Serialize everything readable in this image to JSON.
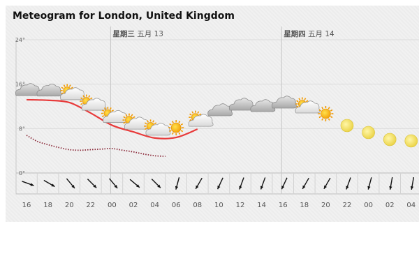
{
  "title": "Meteogram for London, United Kingdom",
  "day_labels": [
    {
      "hour_index": 4,
      "weekday": "星期三",
      "date": "五月 13"
    },
    {
      "hour_index": 12,
      "weekday": "星期四",
      "date": "五月 14"
    }
  ],
  "chart_data": {
    "type": "line",
    "x_ticks": [
      "16",
      "18",
      "20",
      "22",
      "00",
      "02",
      "04",
      "06",
      "08",
      "10",
      "12",
      "14",
      "16",
      "18",
      "20",
      "22",
      "00",
      "02",
      "04"
    ],
    "y_ticks": [
      "24°",
      "16°",
      "8°",
      "0°"
    ],
    "ylim": [
      0,
      24
    ],
    "grid": true,
    "series": [
      {
        "color": "#e83a3a",
        "style": "solid",
        "x": [
          0,
          1,
          2,
          3,
          4,
          5,
          6,
          7,
          8
        ],
        "values": [
          13.2,
          13.1,
          12.7,
          10.8,
          8.6,
          7.4,
          6.3,
          6.4,
          7.9
        ]
      },
      {
        "color": "#8b2a3a",
        "style": "dotted",
        "x": [
          0,
          0.5,
          1,
          1.5,
          2,
          2.5,
          3,
          3.5,
          4,
          4.5,
          5,
          5.5,
          6,
          6.5
        ],
        "values": [
          6.8,
          5.7,
          5.1,
          4.6,
          4.2,
          4.1,
          4.2,
          4.3,
          4.4,
          4.1,
          3.8,
          3.4,
          3.1,
          3.0
        ]
      }
    ],
    "symbols": [
      {
        "x": 0,
        "icon": "cloudy-icon"
      },
      {
        "x": 1,
        "icon": "cloudy-icon"
      },
      {
        "x": 2,
        "icon": "partly-cloudy-icon"
      },
      {
        "x": 3,
        "icon": "partly-cloudy-icon"
      },
      {
        "x": 4,
        "icon": "partly-cloudy-icon"
      },
      {
        "x": 5,
        "icon": "partly-cloudy-icon"
      },
      {
        "x": 6,
        "icon": "partly-cloudy-icon"
      },
      {
        "x": 7,
        "icon": "sun-icon"
      },
      {
        "x": 8,
        "icon": "partly-cloudy-icon"
      },
      {
        "x": 9,
        "icon": "cloudy-icon"
      },
      {
        "x": 10,
        "icon": "cloudy-icon"
      },
      {
        "x": 11,
        "icon": "cloudy-icon"
      },
      {
        "x": 12,
        "icon": "cloudy-icon"
      },
      {
        "x": 13,
        "icon": "partly-cloudy-icon"
      },
      {
        "x": 14,
        "icon": "sun-icon"
      },
      {
        "x": 15,
        "icon": "moon-icon"
      },
      {
        "x": 16,
        "icon": "moon-icon"
      },
      {
        "x": 17,
        "icon": "moon-icon"
      },
      {
        "x": 18,
        "icon": "moon-icon"
      }
    ],
    "wind_directions_deg": [
      290,
      300,
      320,
      315,
      320,
      310,
      315,
      15,
      30,
      25,
      20,
      20,
      25,
      30,
      30,
      20,
      15,
      10,
      10
    ]
  }
}
